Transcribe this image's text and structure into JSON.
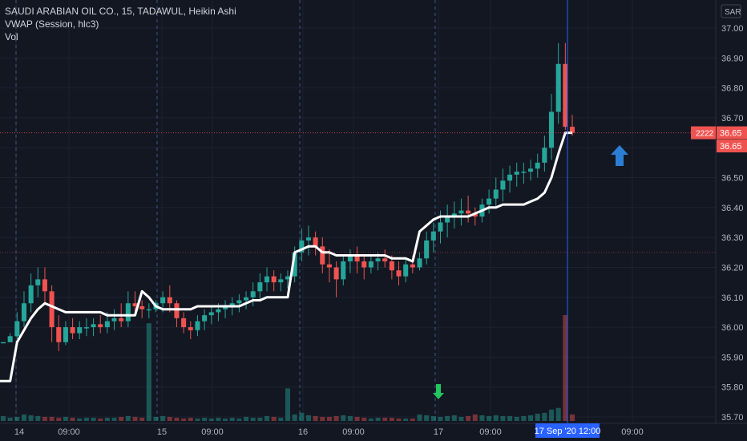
{
  "legend": {
    "line1": "SAUDI ARABIAN OIL CO., 15, TADAWUL, Heikin Ashi",
    "line2": "VWAP (Session, hlc3)",
    "line3": "Vol"
  },
  "currency_badge": "SAR",
  "price_labels": {
    "volume_tag": "2222",
    "price_tag": "36.65",
    "vwap_tag": "36.65"
  },
  "crosshair_label": "17 Sep '20   12:00",
  "colors": {
    "up": "#26a69a",
    "down": "#ef5350",
    "vwap": "#ffffff",
    "bg": "#131722",
    "arrow_up": "#2a7fd4",
    "arrow_down": "#22c55e"
  },
  "icons": {
    "up": "arrow-up-icon",
    "down": "arrow-down-icon"
  },
  "chart_data": {
    "type": "candlestick",
    "title": "SAUDI ARABIAN OIL CO., 15, TADAWUL, Heikin Ashi",
    "y_ticks": [
      "37.00",
      "36.90",
      "36.80",
      "36.70",
      "36.60",
      "36.50",
      "36.40",
      "36.30",
      "36.20",
      "36.10",
      "36.00",
      "35.90",
      "35.80",
      "35.70"
    ],
    "ylim": [
      35.7,
      37.0
    ],
    "x_ticks": [
      "14",
      "09:00",
      "15",
      "09:00",
      "16",
      "09:00",
      "17",
      "09:00",
      "12:00",
      "09:00"
    ],
    "session_dividers": [
      "14",
      "15",
      "16",
      "17"
    ],
    "grid": true,
    "candles": [
      [
        35.95,
        35.95,
        35.95,
        35.95
      ],
      [
        35.95,
        35.98,
        35.95,
        35.97
      ],
      [
        35.97,
        36.05,
        35.96,
        36.02
      ],
      [
        36.02,
        36.12,
        36.0,
        36.08
      ],
      [
        36.08,
        36.18,
        36.05,
        36.14
      ],
      [
        36.14,
        36.2,
        36.1,
        36.16
      ],
      [
        36.16,
        36.2,
        36.08,
        36.12
      ],
      [
        36.12,
        36.14,
        35.95,
        36.0
      ],
      [
        36.0,
        36.04,
        35.92,
        35.95
      ],
      [
        35.95,
        36.02,
        35.94,
        36.0
      ],
      [
        36.0,
        36.03,
        35.96,
        35.98
      ],
      [
        35.98,
        36.02,
        35.96,
        36.0
      ],
      [
        36.0,
        36.03,
        35.97,
        36.0
      ],
      [
        36.0,
        36.03,
        35.97,
        36.01
      ],
      [
        36.01,
        36.04,
        35.98,
        36.0
      ],
      [
        36.0,
        36.05,
        35.98,
        36.02
      ],
      [
        36.02,
        36.06,
        35.99,
        36.03
      ],
      [
        36.03,
        36.08,
        36.0,
        36.02
      ],
      [
        36.02,
        36.12,
        36.0,
        36.08
      ],
      [
        36.08,
        36.12,
        36.04,
        36.07
      ],
      [
        36.07,
        36.09,
        36.03,
        36.06
      ],
      [
        36.06,
        36.08,
        36.03,
        36.06
      ],
      [
        36.06,
        36.09,
        36.05,
        36.08
      ],
      [
        36.08,
        36.12,
        36.05,
        36.1
      ],
      [
        36.1,
        36.14,
        36.05,
        36.08
      ],
      [
        36.08,
        36.09,
        36.0,
        36.03
      ],
      [
        36.03,
        36.05,
        35.98,
        36.0
      ],
      [
        36.0,
        36.02,
        35.96,
        35.99
      ],
      [
        35.99,
        36.04,
        35.97,
        36.02
      ],
      [
        36.02,
        36.06,
        35.99,
        36.04
      ],
      [
        36.04,
        36.07,
        36.01,
        36.05
      ],
      [
        36.05,
        36.08,
        36.02,
        36.06
      ],
      [
        36.06,
        36.09,
        36.03,
        36.07
      ],
      [
        36.07,
        36.1,
        36.04,
        36.08
      ],
      [
        36.08,
        36.11,
        36.05,
        36.09
      ],
      [
        36.09,
        36.12,
        36.06,
        36.1
      ],
      [
        36.1,
        36.15,
        36.07,
        36.12
      ],
      [
        36.12,
        36.18,
        36.09,
        36.15
      ],
      [
        36.15,
        36.2,
        36.12,
        36.17
      ],
      [
        36.17,
        36.19,
        36.12,
        36.15
      ],
      [
        36.15,
        36.18,
        36.12,
        36.16
      ],
      [
        36.16,
        36.19,
        36.13,
        36.17
      ],
      [
        36.17,
        36.27,
        36.15,
        36.25
      ],
      [
        36.25,
        36.33,
        36.22,
        36.29
      ],
      [
        36.29,
        36.34,
        36.24,
        36.3
      ],
      [
        36.3,
        36.32,
        36.24,
        36.27
      ],
      [
        36.27,
        36.3,
        36.18,
        36.21
      ],
      [
        36.21,
        36.26,
        36.15,
        36.2
      ],
      [
        36.2,
        36.22,
        36.1,
        36.16
      ],
      [
        36.16,
        36.24,
        36.14,
        36.22
      ],
      [
        36.22,
        36.26,
        36.18,
        36.24
      ],
      [
        36.24,
        36.27,
        36.18,
        36.22
      ],
      [
        36.22,
        36.24,
        36.16,
        36.2
      ],
      [
        36.2,
        36.24,
        36.18,
        36.22
      ],
      [
        36.22,
        36.25,
        36.19,
        36.23
      ],
      [
        36.23,
        36.26,
        36.2,
        36.22
      ],
      [
        36.22,
        36.24,
        36.16,
        36.19
      ],
      [
        36.19,
        36.22,
        36.14,
        36.17
      ],
      [
        36.17,
        36.23,
        36.15,
        36.21
      ],
      [
        36.21,
        36.24,
        36.18,
        36.2
      ],
      [
        36.2,
        36.25,
        36.19,
        36.23
      ],
      [
        36.23,
        36.32,
        36.21,
        36.29
      ],
      [
        36.29,
        36.35,
        36.25,
        36.32
      ],
      [
        36.32,
        36.39,
        36.28,
        36.35
      ],
      [
        36.35,
        36.41,
        36.3,
        36.37
      ],
      [
        36.37,
        36.42,
        36.33,
        36.38
      ],
      [
        36.38,
        36.43,
        36.34,
        36.39
      ],
      [
        36.39,
        36.44,
        36.35,
        36.38
      ],
      [
        36.38,
        36.4,
        36.34,
        36.37
      ],
      [
        36.37,
        36.43,
        36.35,
        36.41
      ],
      [
        36.41,
        36.46,
        36.38,
        36.43
      ],
      [
        36.43,
        36.5,
        36.4,
        36.46
      ],
      [
        36.46,
        36.53,
        36.42,
        36.49
      ],
      [
        36.49,
        36.54,
        36.45,
        36.51
      ],
      [
        36.51,
        36.55,
        36.47,
        36.52
      ],
      [
        36.52,
        36.55,
        36.48,
        36.52
      ],
      [
        36.52,
        36.56,
        36.49,
        36.53
      ],
      [
        36.53,
        36.58,
        36.5,
        36.55
      ],
      [
        36.55,
        36.64,
        36.52,
        36.6
      ],
      [
        36.6,
        36.78,
        36.56,
        36.72
      ],
      [
        36.72,
        36.95,
        36.68,
        36.88
      ],
      [
        36.88,
        36.95,
        36.66,
        36.67
      ],
      [
        36.67,
        36.71,
        36.64,
        36.65
      ]
    ],
    "vwap": [
      35.82,
      35.82,
      35.95,
      35.99,
      36.03,
      36.06,
      36.08,
      36.07,
      36.06,
      36.05,
      36.05,
      36.05,
      36.05,
      36.05,
      36.05,
      36.04,
      36.04,
      36.04,
      36.04,
      36.04,
      36.12,
      36.1,
      36.07,
      36.06,
      36.06,
      36.06,
      36.06,
      36.06,
      36.07,
      36.07,
      36.07,
      36.07,
      36.07,
      36.07,
      36.07,
      36.08,
      36.09,
      36.09,
      36.1,
      36.1,
      36.1,
      36.1,
      36.25,
      36.26,
      36.27,
      36.27,
      36.25,
      36.25,
      36.24,
      36.24,
      36.24,
      36.24,
      36.24,
      36.24,
      36.24,
      36.24,
      36.23,
      36.23,
      36.23,
      36.22,
      36.32,
      36.34,
      36.36,
      36.37,
      36.37,
      36.37,
      36.37,
      36.37,
      36.38,
      36.39,
      36.4,
      36.4,
      36.41,
      36.41,
      36.41,
      36.41,
      36.42,
      36.43,
      36.45,
      36.5,
      36.58,
      36.65,
      36.65
    ],
    "volume": [
      6,
      4,
      5,
      8,
      7,
      6,
      5,
      5,
      4,
      5,
      4,
      3,
      4,
      4,
      3,
      4,
      4,
      5,
      6,
      5,
      4,
      120,
      5,
      6,
      5,
      4,
      3,
      4,
      3,
      4,
      3,
      4,
      3,
      4,
      3,
      5,
      4,
      4,
      6,
      5,
      4,
      40,
      8,
      10,
      7,
      6,
      5,
      5,
      6,
      7,
      6,
      5,
      4,
      3,
      4,
      4,
      4,
      3,
      3,
      3,
      8,
      7,
      6,
      5,
      6,
      7,
      5,
      6,
      8,
      7,
      6,
      7,
      6,
      6,
      5,
      6,
      7,
      9,
      10,
      14,
      16,
      130,
      8
    ],
    "volume_max": 130
  }
}
